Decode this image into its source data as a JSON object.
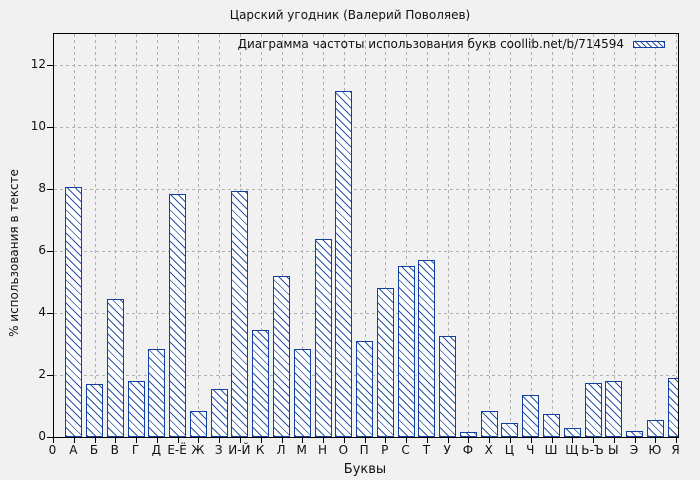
{
  "chart_data": {
    "type": "bar",
    "title": "Царский угодник (Валерий Поволяев)",
    "legend_label": "Диаграмма частоты использования букв coollib.net/b/714594",
    "legend_position": "top-right-inside",
    "xlabel": "Буквы",
    "ylabel": "% использования в тексте",
    "x_origin_tick_label": "0",
    "categories": [
      "А",
      "Б",
      "В",
      "Г",
      "Д",
      "Е-Ё",
      "Ж",
      "З",
      "И-Й",
      "К",
      "Л",
      "М",
      "Н",
      "О",
      "П",
      "Р",
      "С",
      "Т",
      "У",
      "Ф",
      "Х",
      "Ц",
      "Ч",
      "Ш",
      "Щ",
      "Ь-Ъ",
      "Ы",
      "Э",
      "Ю",
      "Я"
    ],
    "values": [
      8.05,
      1.7,
      4.45,
      1.8,
      2.85,
      7.85,
      0.85,
      1.55,
      7.95,
      3.45,
      5.2,
      2.85,
      6.4,
      11.15,
      3.1,
      4.8,
      5.5,
      5.7,
      3.25,
      0.15,
      0.85,
      0.45,
      1.35,
      0.75,
      0.3,
      1.75,
      1.8,
      0.2,
      0.55,
      1.9
    ],
    "yticks": [
      0,
      2,
      4,
      6,
      8,
      10,
      12
    ],
    "ylim": [
      0,
      13
    ],
    "grid": true,
    "bar_style": "hatched-outline",
    "colors": {
      "bar_outline": "#11409e",
      "bar_hatch": "#2a55a8",
      "bar_fill": "#ffffff",
      "grid": "#b0b0b0",
      "axis": "#000000",
      "background": "#f1f1f1",
      "text": "#111111"
    }
  }
}
